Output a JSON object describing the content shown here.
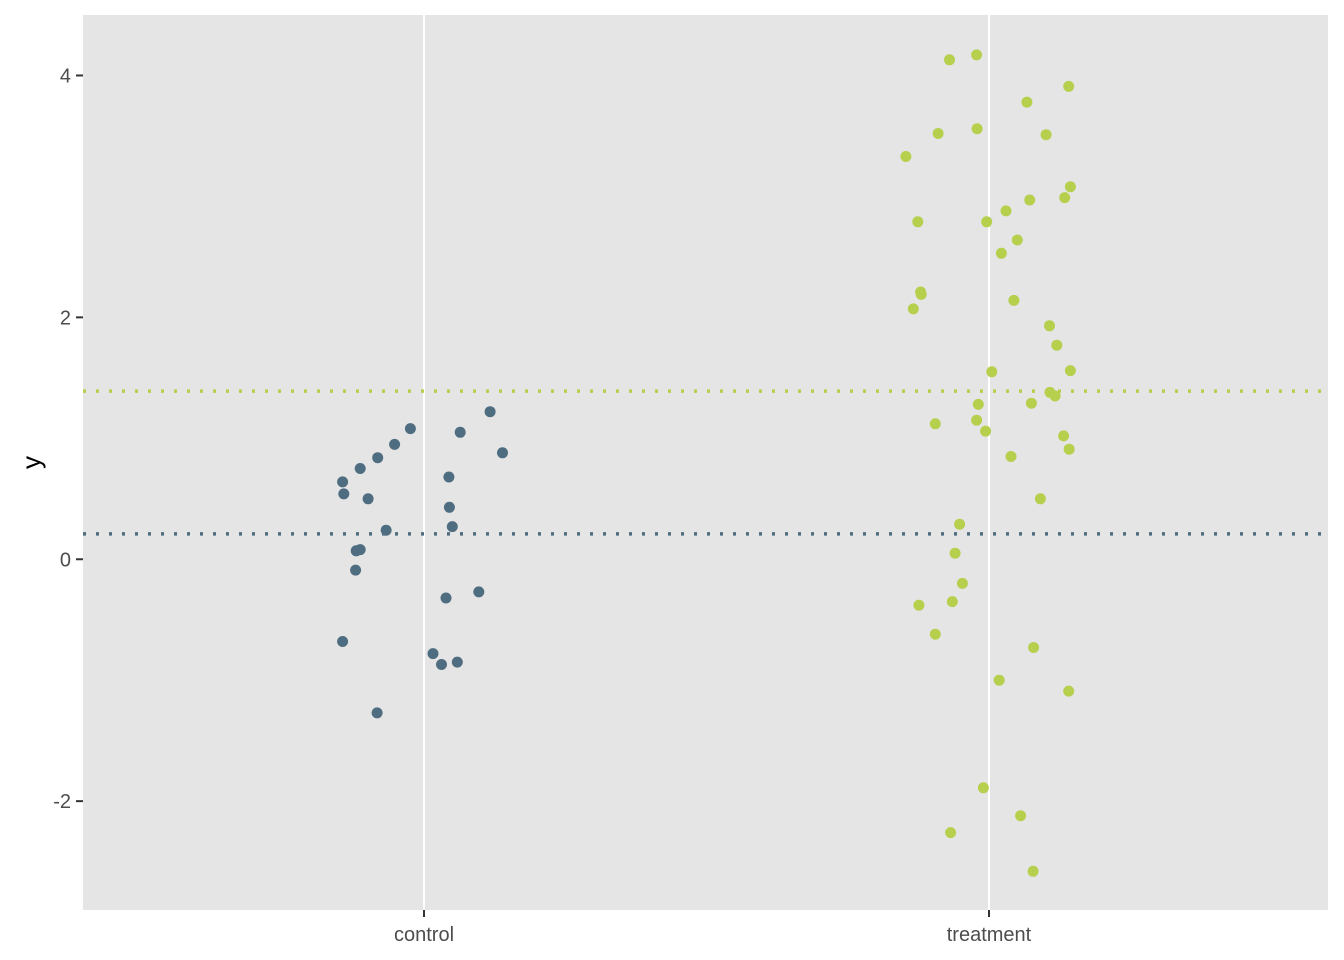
{
  "colors": {
    "panel_background": "#e5e5e5",
    "grid_line": "#ffffff",
    "tick_mark": "#333333",
    "tick_text": "#4d4d4d",
    "control": "#4f6d80",
    "treatment": "#b6d04e"
  },
  "chart_data": {
    "type": "scatter",
    "xlabel": "",
    "ylabel": "y",
    "categories": [
      "control",
      "treatment"
    ],
    "ylim": [
      -2.9,
      4.5
    ],
    "y_ticks": [
      {
        "value": -2,
        "label": "-2"
      },
      {
        "value": 0,
        "label": "0"
      },
      {
        "value": 2,
        "label": "2"
      },
      {
        "value": 4,
        "label": "4"
      }
    ],
    "grid": true,
    "legend": "none",
    "reference_lines": [
      {
        "group": "control",
        "y": 0.21,
        "style": "dotted"
      },
      {
        "group": "treatment",
        "y": 1.39,
        "style": "dotted"
      }
    ],
    "series": [
      {
        "group": "control",
        "points": [
          {
            "x": -0.144,
            "y": 0.64
          },
          {
            "x": -0.142,
            "y": 0.54
          },
          {
            "x": -0.144,
            "y": -0.68
          },
          {
            "x": -0.12,
            "y": 0.07
          },
          {
            "x": -0.113,
            "y": 0.08
          },
          {
            "x": -0.121,
            "y": -0.09
          },
          {
            "x": -0.113,
            "y": 0.75
          },
          {
            "x": -0.099,
            "y": 0.5
          },
          {
            "x": -0.082,
            "y": 0.84
          },
          {
            "x": -0.083,
            "y": -1.27
          },
          {
            "x": -0.067,
            "y": 0.24
          },
          {
            "x": -0.052,
            "y": 0.95
          },
          {
            "x": -0.024,
            "y": 1.08
          },
          {
            "x": 0.016,
            "y": -0.78
          },
          {
            "x": 0.031,
            "y": -0.87
          },
          {
            "x": 0.039,
            "y": -0.32
          },
          {
            "x": 0.044,
            "y": 0.68
          },
          {
            "x": 0.045,
            "y": 0.43
          },
          {
            "x": 0.05,
            "y": 0.27
          },
          {
            "x": 0.059,
            "y": -0.85
          },
          {
            "x": 0.064,
            "y": 1.05
          },
          {
            "x": 0.097,
            "y": -0.27
          },
          {
            "x": 0.117,
            "y": 1.22
          },
          {
            "x": 0.139,
            "y": 0.88
          }
        ]
      },
      {
        "group": "treatment",
        "points": [
          {
            "x": -0.147,
            "y": 3.33
          },
          {
            "x": -0.134,
            "y": 2.07
          },
          {
            "x": -0.126,
            "y": 2.79
          },
          {
            "x": -0.124,
            "y": -0.38
          },
          {
            "x": -0.121,
            "y": 2.21
          },
          {
            "x": -0.12,
            "y": 2.19
          },
          {
            "x": -0.095,
            "y": 1.12
          },
          {
            "x": -0.095,
            "y": -0.62
          },
          {
            "x": -0.09,
            "y": 3.52
          },
          {
            "x": -0.07,
            "y": 4.13
          },
          {
            "x": -0.068,
            "y": -2.26
          },
          {
            "x": -0.065,
            "y": -0.35
          },
          {
            "x": -0.06,
            "y": 0.05
          },
          {
            "x": -0.052,
            "y": 0.29
          },
          {
            "x": -0.047,
            "y": -0.2
          },
          {
            "x": -0.022,
            "y": 4.17
          },
          {
            "x": -0.022,
            "y": 1.15
          },
          {
            "x": -0.021,
            "y": 3.56
          },
          {
            "x": -0.019,
            "y": 1.28
          },
          {
            "x": -0.01,
            "y": -1.89
          },
          {
            "x": -0.006,
            "y": 1.06
          },
          {
            "x": -0.004,
            "y": 2.79
          },
          {
            "x": 0.005,
            "y": 1.55
          },
          {
            "x": 0.018,
            "y": -1.0
          },
          {
            "x": 0.022,
            "y": 2.53
          },
          {
            "x": 0.03,
            "y": 2.88
          },
          {
            "x": 0.039,
            "y": 0.85
          },
          {
            "x": 0.044,
            "y": 2.14
          },
          {
            "x": 0.05,
            "y": 2.64
          },
          {
            "x": 0.056,
            "y": -2.12
          },
          {
            "x": 0.067,
            "y": 3.78
          },
          {
            "x": 0.072,
            "y": 2.97
          },
          {
            "x": 0.075,
            "y": 1.29
          },
          {
            "x": 0.078,
            "y": -2.58
          },
          {
            "x": 0.079,
            "y": -0.73
          },
          {
            "x": 0.091,
            "y": 0.5
          },
          {
            "x": 0.101,
            "y": 3.51
          },
          {
            "x": 0.107,
            "y": 1.93
          },
          {
            "x": 0.108,
            "y": 1.38
          },
          {
            "x": 0.117,
            "y": 1.35
          },
          {
            "x": 0.12,
            "y": 1.77
          },
          {
            "x": 0.132,
            "y": 1.02
          },
          {
            "x": 0.134,
            "y": 2.99
          },
          {
            "x": 0.141,
            "y": 3.91
          },
          {
            "x": 0.141,
            "y": -1.09
          },
          {
            "x": 0.142,
            "y": 0.91
          },
          {
            "x": 0.144,
            "y": 3.08
          },
          {
            "x": 0.144,
            "y": 1.56
          }
        ]
      }
    ]
  }
}
